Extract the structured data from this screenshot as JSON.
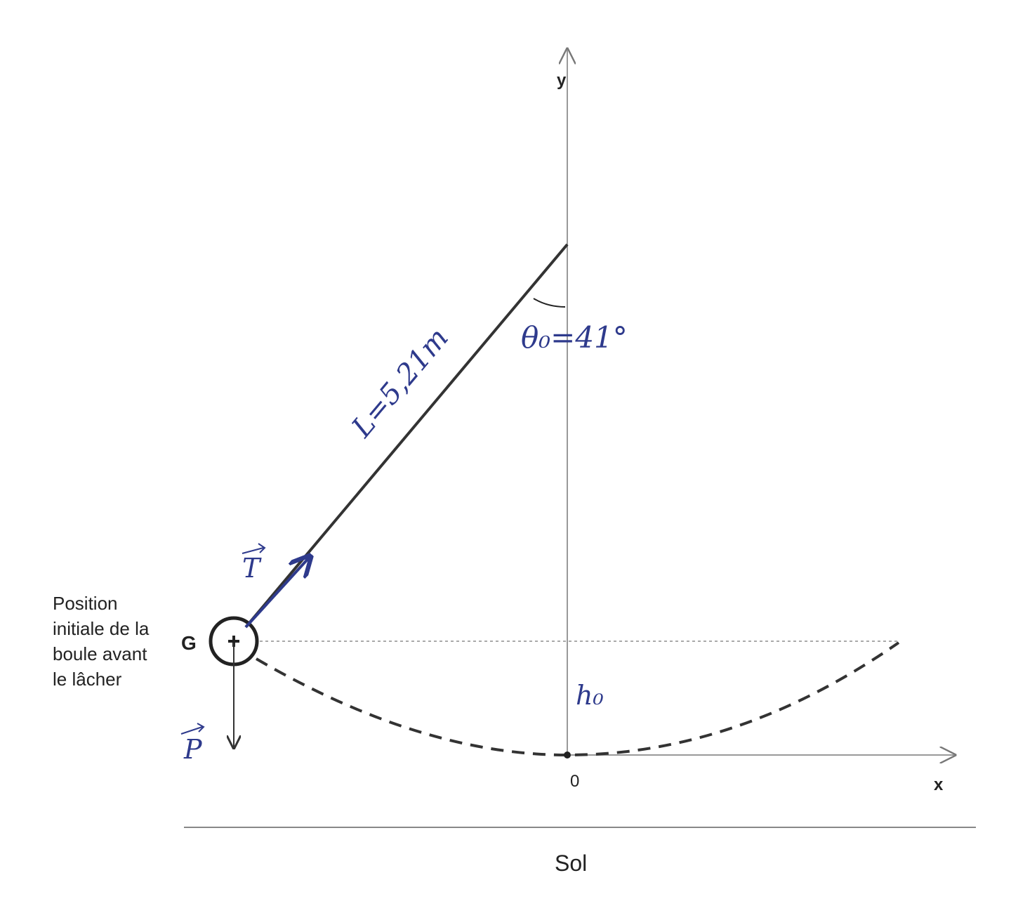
{
  "axes": {
    "y_label": "y",
    "x_label": "x",
    "origin": "0"
  },
  "ground": "Sol",
  "ball": {
    "label": "G",
    "description": [
      "Position",
      "initiale de la",
      "boule avant",
      "le lâcher"
    ]
  },
  "annotations": {
    "length": "L=5,21m",
    "angle": "θ₀=41°",
    "height": "h₀",
    "tension": "T",
    "weight": "P"
  }
}
